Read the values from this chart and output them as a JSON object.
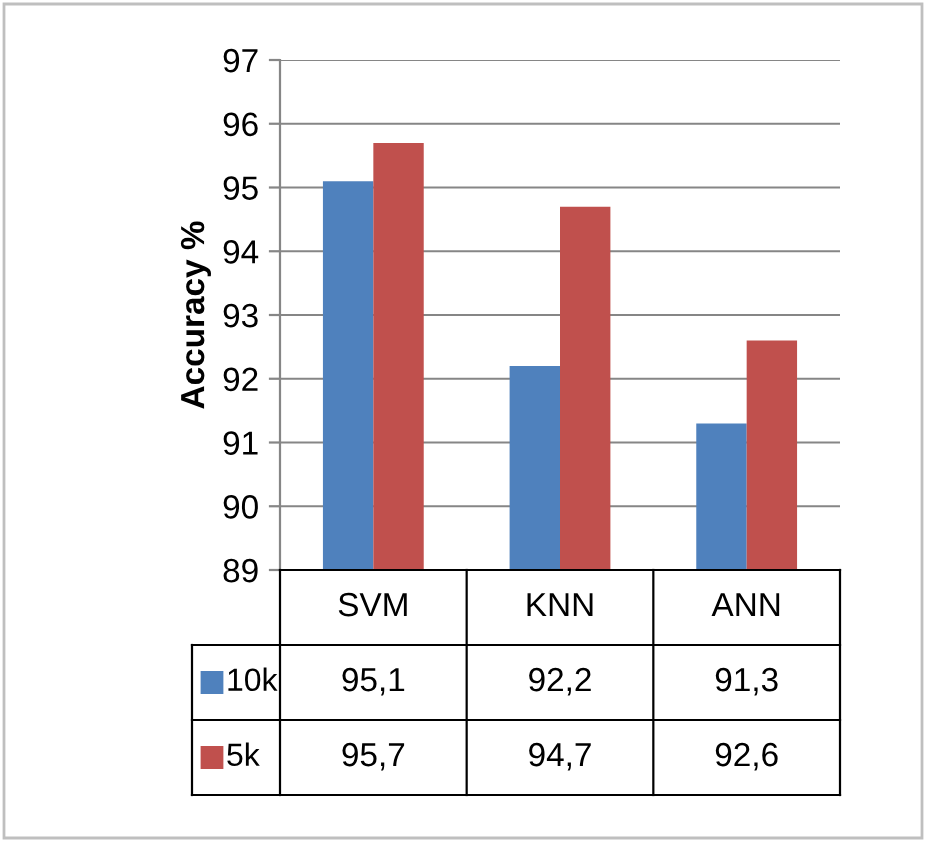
{
  "chart_data": {
    "type": "bar",
    "ylabel": "Accuracy %",
    "categories": [
      "SVM",
      "KNN",
      "ANN"
    ],
    "series": [
      {
        "name": "10k",
        "color": "#4f81bd",
        "values": [
          95.1,
          92.2,
          91.3
        ],
        "value_labels": [
          "95,1",
          "92,2",
          "91,3"
        ]
      },
      {
        "name": "5k",
        "color": "#c0504d",
        "values": [
          95.7,
          94.7,
          92.6
        ],
        "value_labels": [
          "95,7",
          "94,7",
          "92,6"
        ]
      }
    ],
    "ylim": [
      89,
      97
    ],
    "yticks": [
      89,
      90,
      91,
      92,
      93,
      94,
      95,
      96,
      97
    ],
    "grid": "y",
    "legend": "bottom"
  }
}
